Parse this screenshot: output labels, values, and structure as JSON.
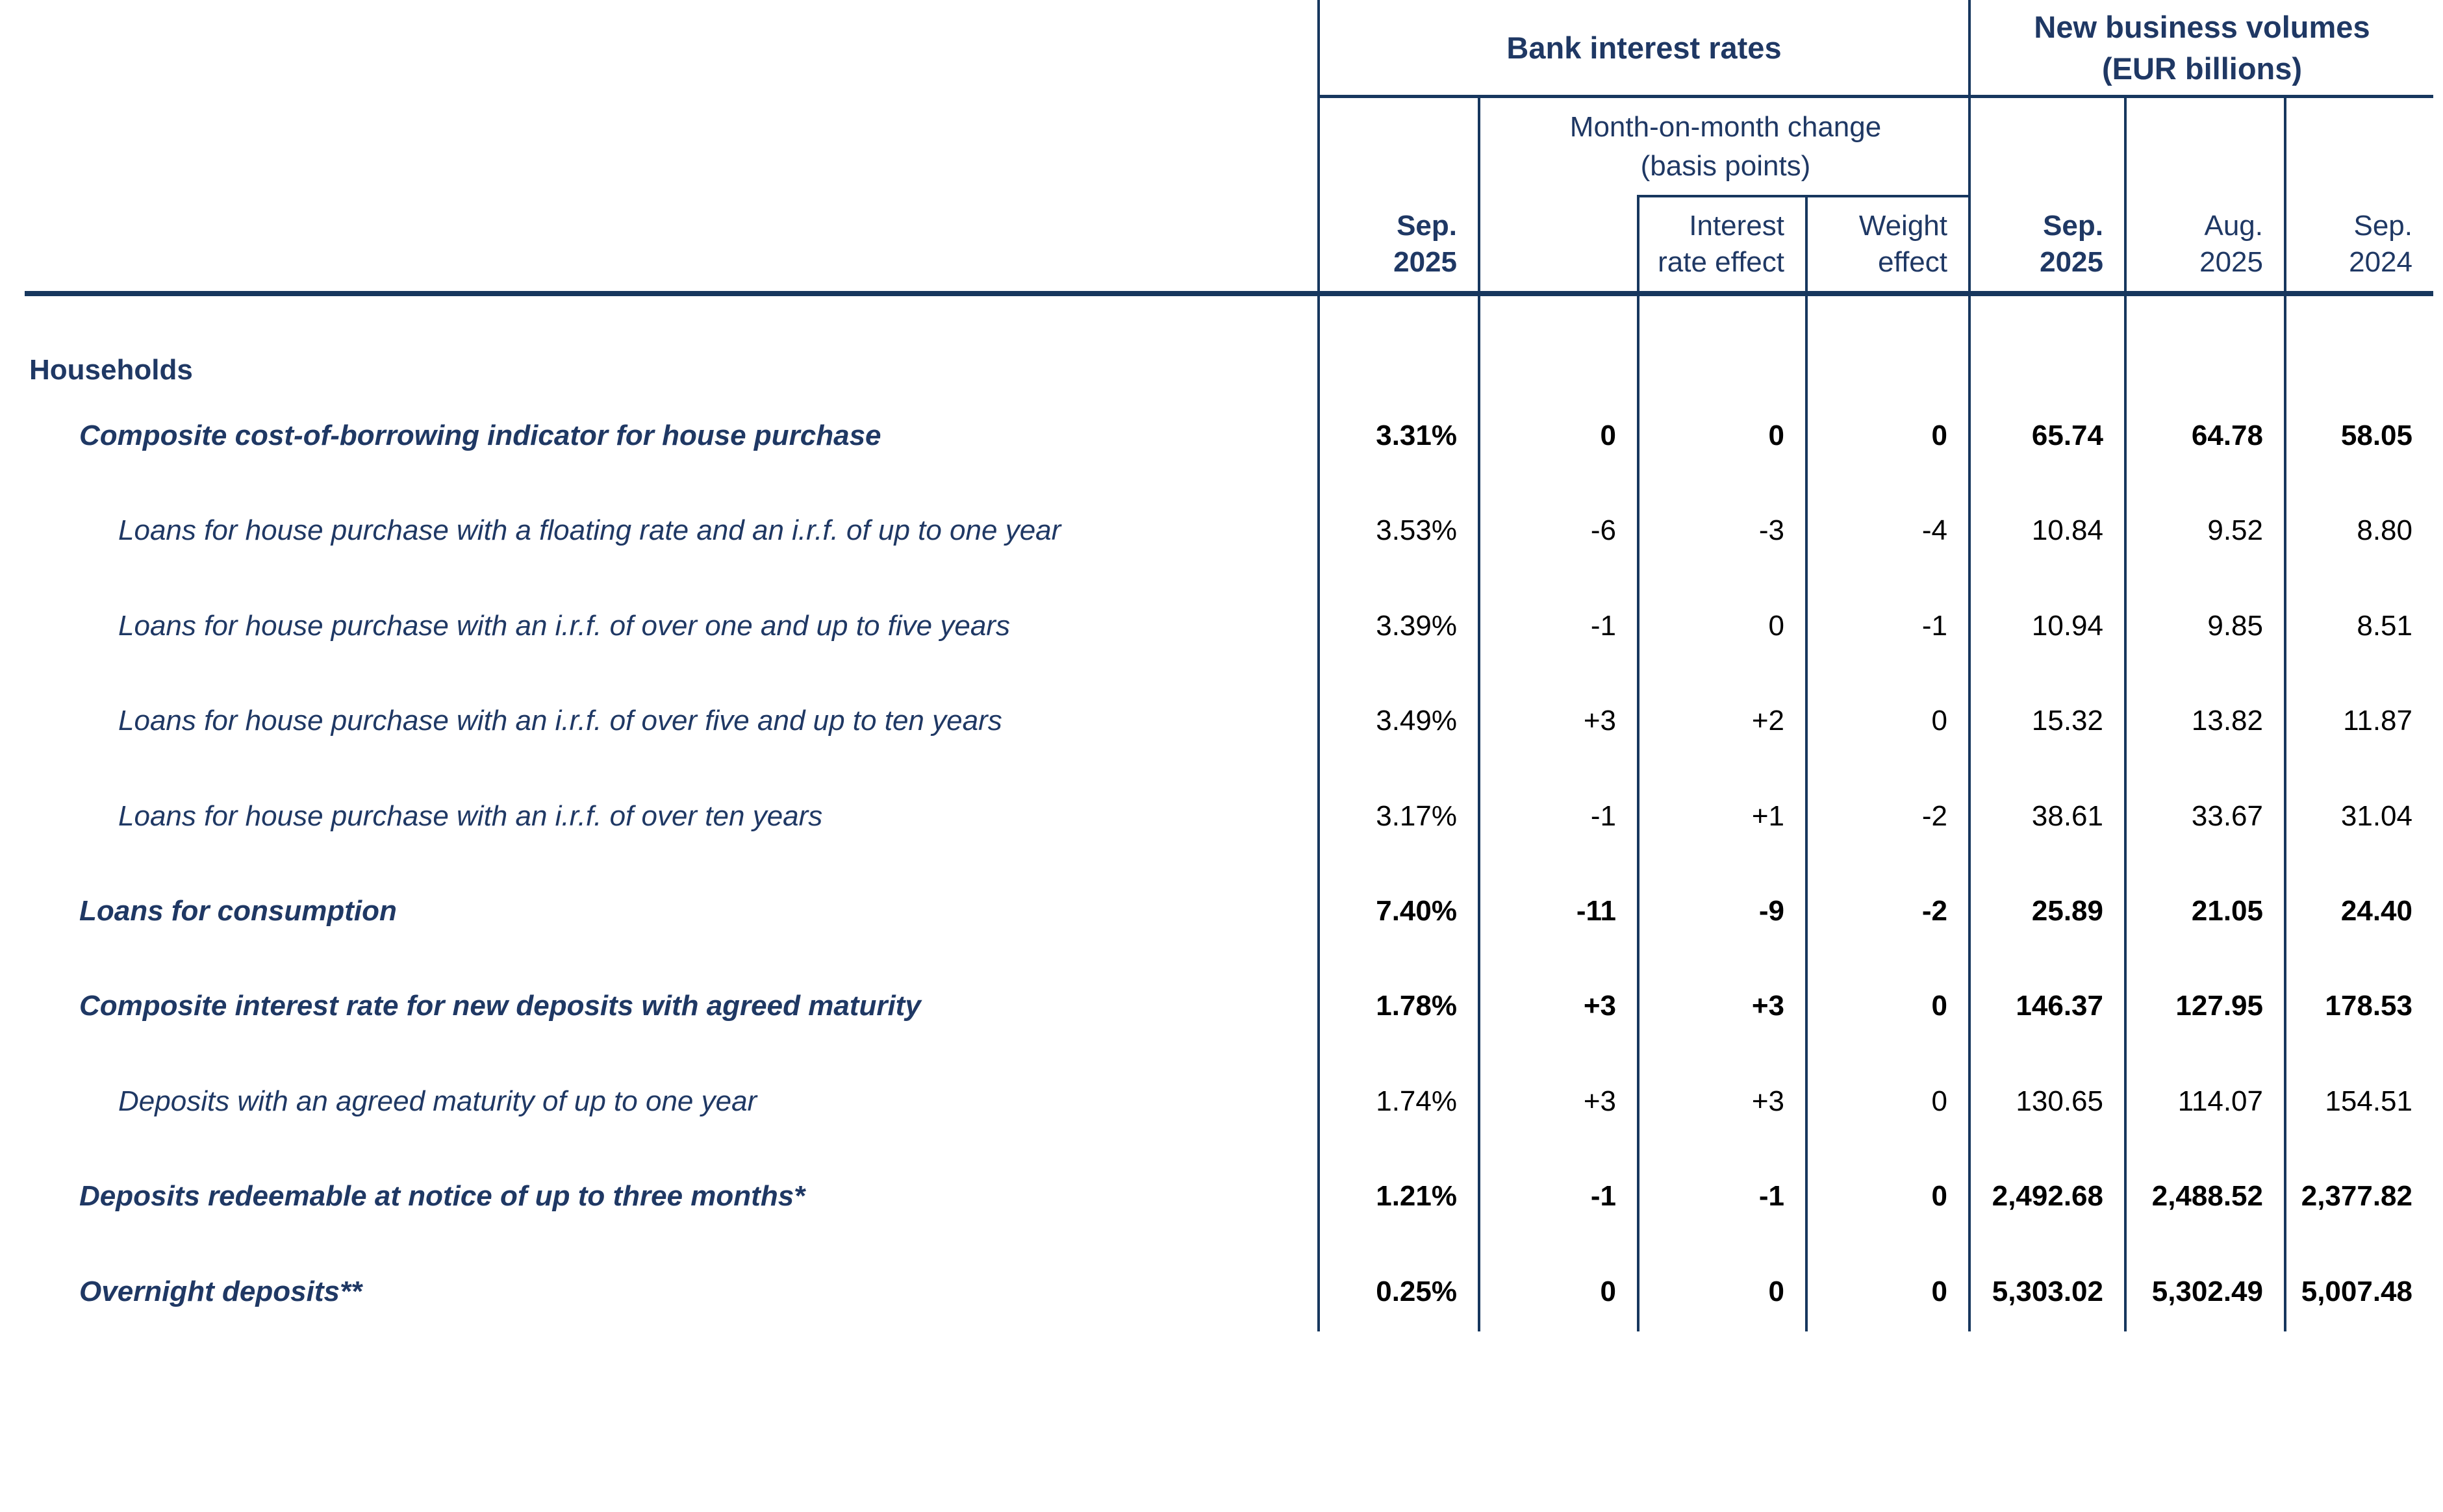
{
  "colors": {
    "text_navy": "#1f3864",
    "line_navy": "#17375e",
    "data_black": "#000000",
    "background": "#ffffff"
  },
  "header": {
    "bank_interest_rates": "Bank interest rates",
    "new_business_volumes": {
      "line1": "New business volumes",
      "line2": "(EUR billions)"
    },
    "month_on_month": {
      "line1": "Month-on-month change",
      "line2": "(basis points)"
    },
    "columns": [
      {
        "line1": "Sep.",
        "line2": "2025"
      },
      {
        "line1": "",
        "line2": ""
      },
      {
        "line1": "Interest",
        "line2": "rate effect"
      },
      {
        "line1": "Weight",
        "line2": "effect"
      },
      {
        "line1": "Sep.",
        "line2": "2025"
      },
      {
        "line1": "Aug.",
        "line2": "2025"
      },
      {
        "line1": "Sep.",
        "line2": "2024"
      }
    ]
  },
  "section": {
    "label": "Households"
  },
  "rows": [
    {
      "label": "Composite cost-of-borrowing indicator for house purchase",
      "values": [
        "3.31%",
        "0",
        "0",
        "0",
        "65.74",
        "64.78",
        "58.05"
      ]
    },
    {
      "label": "Loans for house purchase with a floating rate and an i.r.f. of up to one year",
      "values": [
        "3.53%",
        "-6",
        "-3",
        "-4",
        "10.84",
        "9.52",
        "8.80"
      ]
    },
    {
      "label": "Loans for house purchase with an i.r.f. of over one and up to five years",
      "values": [
        "3.39%",
        "-1",
        "0",
        "-1",
        "10.94",
        "9.85",
        "8.51"
      ]
    },
    {
      "label": "Loans for house purchase with an i.r.f. of over five and up to ten years",
      "values": [
        "3.49%",
        "+3",
        "+2",
        "0",
        "15.32",
        "13.82",
        "11.87"
      ]
    },
    {
      "label": "Loans for house purchase with an i.r.f. of over ten years",
      "values": [
        "3.17%",
        "-1",
        "+1",
        "-2",
        "38.61",
        "33.67",
        "31.04"
      ]
    },
    {
      "label": "Loans for consumption",
      "values": [
        "7.40%",
        "-11",
        "-9",
        "-2",
        "25.89",
        "21.05",
        "24.40"
      ]
    },
    {
      "label": "Composite interest rate for new deposits with agreed maturity",
      "values": [
        "1.78%",
        "+3",
        "+3",
        "0",
        "146.37",
        "127.95",
        "178.53"
      ]
    },
    {
      "label": "Deposits with an agreed maturity of up to one year",
      "values": [
        "1.74%",
        "+3",
        "+3",
        "0",
        "130.65",
        "114.07",
        "154.51"
      ]
    },
    {
      "label": "Deposits redeemable at notice of up to three months*",
      "values": [
        "1.21%",
        "-1",
        "-1",
        "0",
        "2,492.68",
        "2,488.52",
        "2,377.82"
      ]
    },
    {
      "label": "Overnight deposits**",
      "values": [
        "0.25%",
        "0",
        "0",
        "0",
        "5,303.02",
        "5,302.49",
        "5,007.48"
      ]
    }
  ]
}
